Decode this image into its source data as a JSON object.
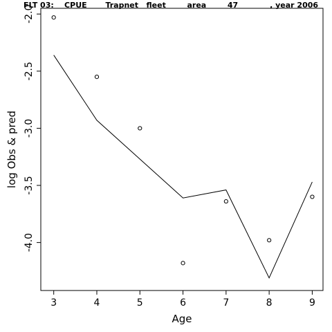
{
  "chart_data": {
    "type": "line",
    "title": "FLT 03:    CPUE       Trapnet   fleet        area        47            , year 2006",
    "xlabel": "Age",
    "ylabel": "log Obs & pred",
    "xlim": [
      2.7,
      9.25
    ],
    "ylim": [
      -4.42,
      -1.95
    ],
    "x_ticks": [
      3,
      4,
      5,
      6,
      7,
      8,
      9
    ],
    "x_tick_labels": [
      "3",
      "4",
      "5",
      "6",
      "7",
      "8",
      "9"
    ],
    "y_ticks": [
      -4.0,
      -3.5,
      -3.0,
      -2.5,
      -2.0
    ],
    "y_tick_labels": [
      "-4.0",
      "-3.5",
      "-3.0",
      "-2.5",
      "-2.0"
    ],
    "grid": false,
    "legend": "none",
    "series": [
      {
        "type": "scatter",
        "marker": "open-circle",
        "x": [
          3,
          4,
          5,
          6,
          7,
          8,
          9
        ],
        "y": [
          -2.03,
          -2.55,
          -3.0,
          -4.18,
          -3.64,
          -3.98,
          -3.6
        ]
      },
      {
        "type": "line",
        "x": [
          3,
          4,
          6,
          7,
          8,
          9
        ],
        "y": [
          -2.36,
          -2.93,
          -3.61,
          -3.54,
          -4.31,
          -3.47
        ]
      }
    ]
  }
}
